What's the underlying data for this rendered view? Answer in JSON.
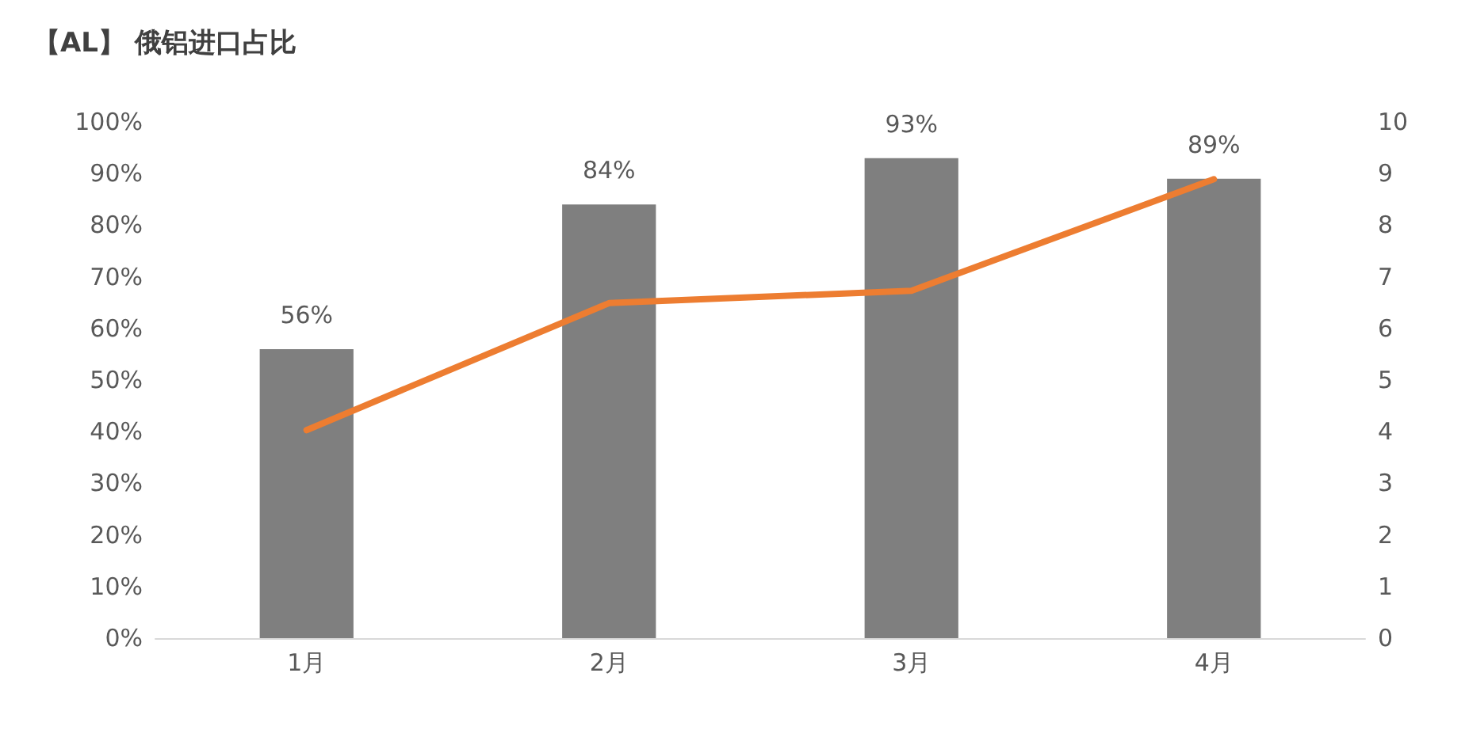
{
  "chart_data": {
    "type": "bar",
    "title": "【AL】 俄铝进口占比",
    "categories": [
      "1月",
      "2月",
      "3月",
      "4月"
    ],
    "series": [
      {
        "color": "#7f7f7f",
        "values": [
          56,
          84,
          93,
          89
        ],
        "value_labels": [
          "56%",
          "84%",
          "93%",
          "89%"
        ]
      },
      {
        "type": "line",
        "axis": "y2",
        "color": "#ed7d31",
        "values": [
          4.03,
          6.49,
          6.73,
          8.89
        ],
        "marker": "none"
      }
    ],
    "ylim": [
      0,
      100
    ],
    "yticks": [
      {
        "value": 0,
        "label": "0%"
      },
      {
        "value": 10,
        "label": "10%"
      },
      {
        "value": 20,
        "label": "20%"
      },
      {
        "value": 30,
        "label": "30%"
      },
      {
        "value": 40,
        "label": "40%"
      },
      {
        "value": 50,
        "label": "50%"
      },
      {
        "value": 60,
        "label": "60%"
      },
      {
        "value": 70,
        "label": "70%"
      },
      {
        "value": 80,
        "label": "80%"
      },
      {
        "value": 90,
        "label": "90%"
      },
      {
        "value": 100,
        "label": "100%"
      }
    ],
    "y2lim": [
      0,
      10
    ],
    "y2ticks": [
      0,
      1,
      2,
      3,
      4,
      5,
      6,
      7,
      8,
      9,
      10
    ],
    "grid": false
  }
}
